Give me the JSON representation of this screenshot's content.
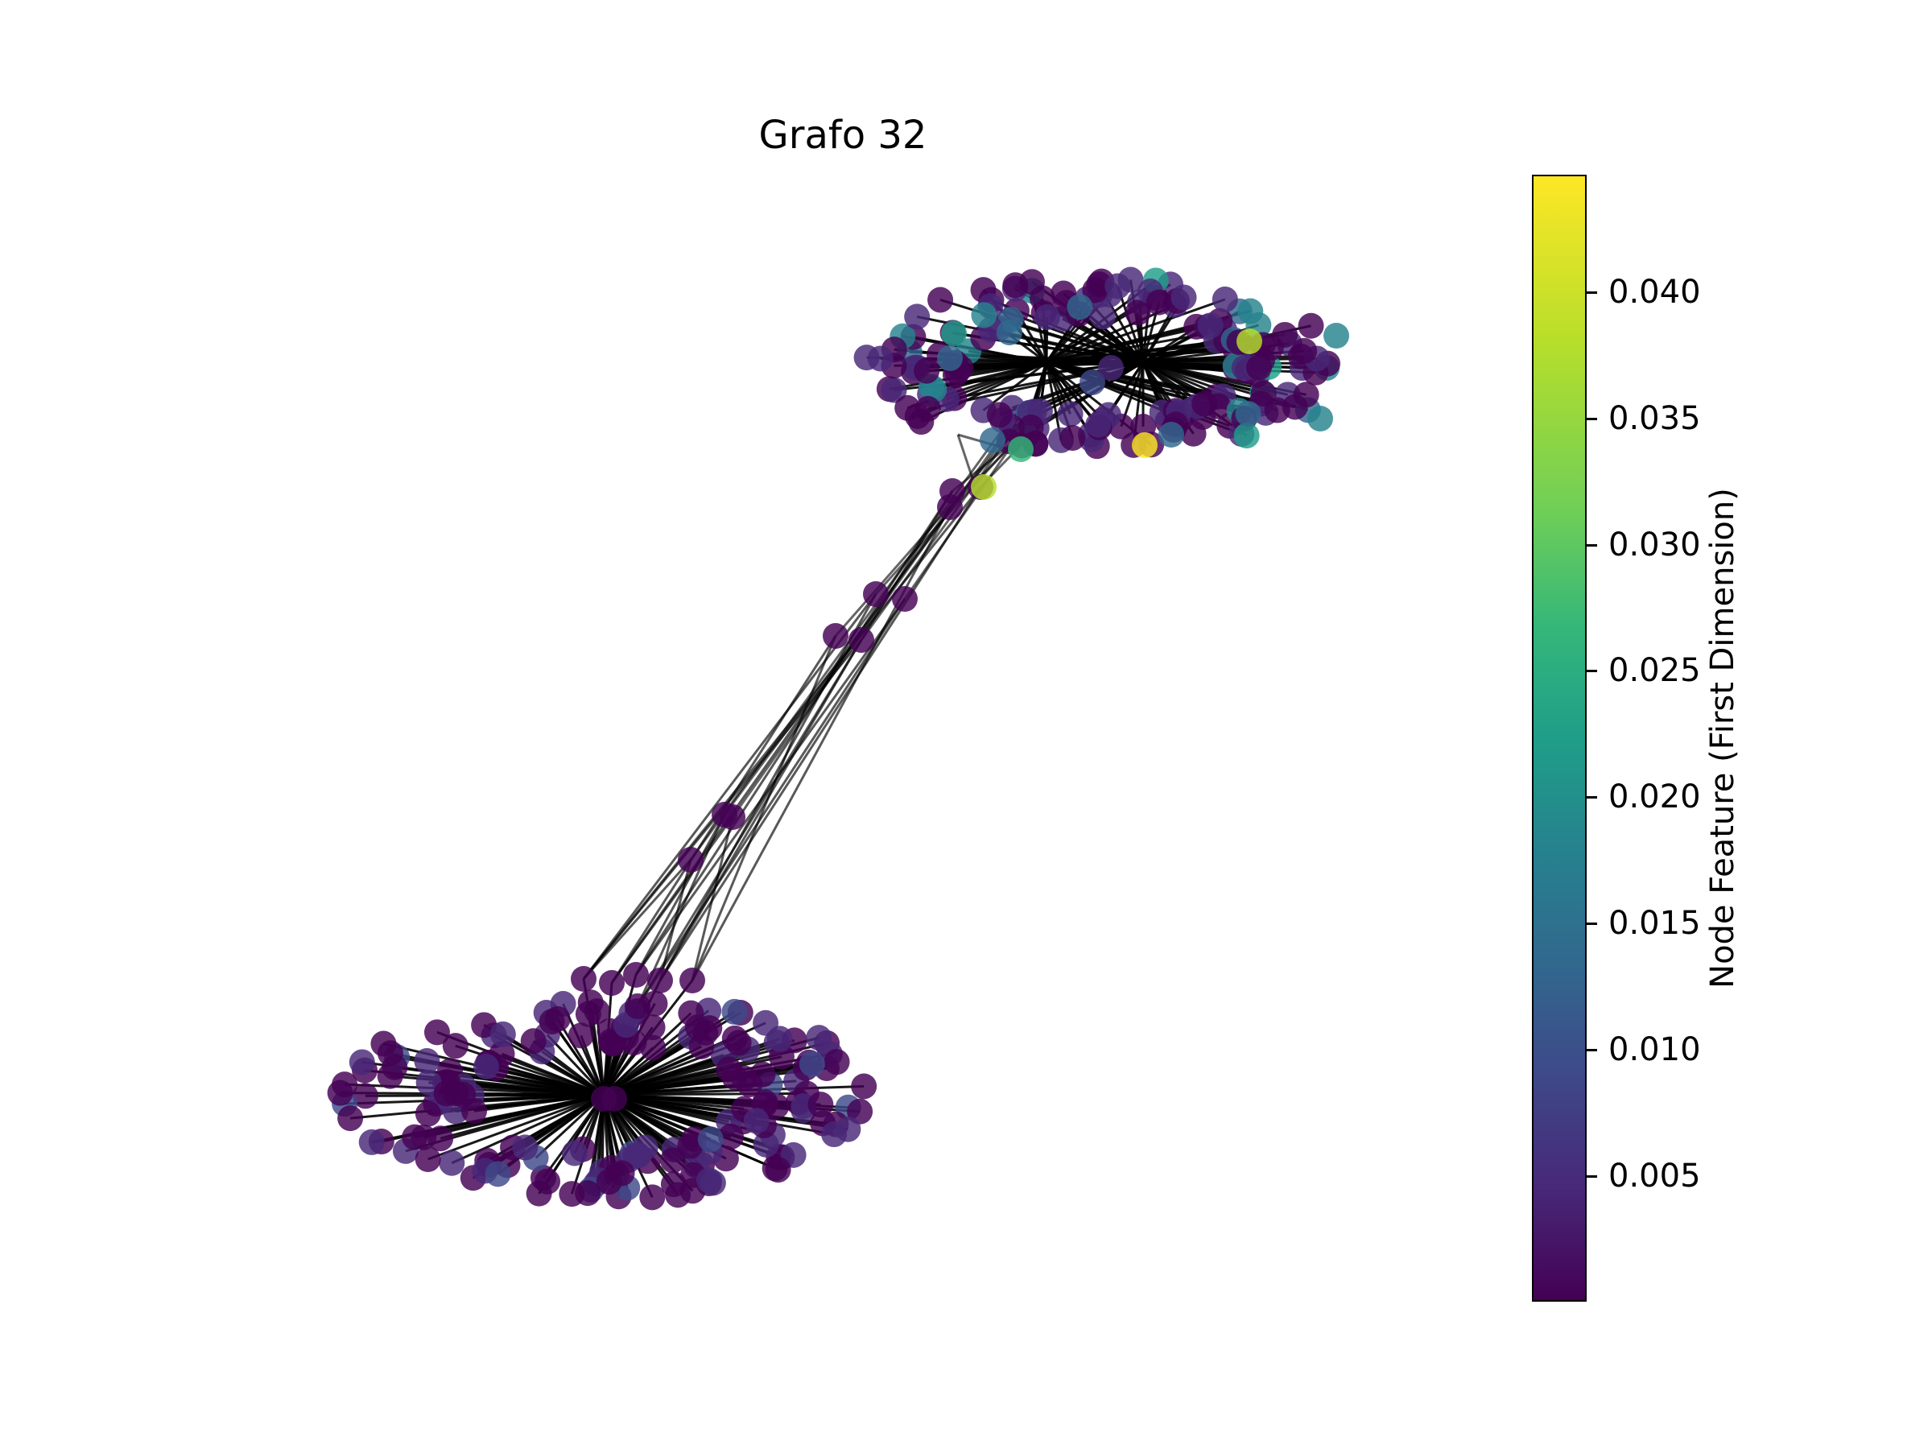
{
  "figure": {
    "title": "Grafo 32"
  },
  "colorbar": {
    "label": "Node Feature (First Dimension)",
    "min": 0.0,
    "max": 0.0445,
    "colormap": "viridis",
    "ticks": [
      {
        "value": 0.04,
        "label": "0.040"
      },
      {
        "value": 0.035,
        "label": "0.035"
      },
      {
        "value": 0.03,
        "label": "0.030"
      },
      {
        "value": 0.025,
        "label": "0.025"
      },
      {
        "value": 0.02,
        "label": "0.020"
      },
      {
        "value": 0.015,
        "label": "0.015"
      },
      {
        "value": 0.01,
        "label": "0.010"
      },
      {
        "value": 0.005,
        "label": "0.005"
      }
    ]
  },
  "colors": {
    "edge": "#000000",
    "node_low": "#440154",
    "node_high": "#fde725"
  }
}
